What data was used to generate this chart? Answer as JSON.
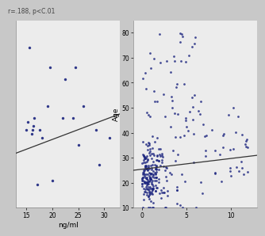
{
  "left_plot": {
    "annotation": "r=.188, p<C.01",
    "xlabel": "ng/ml",
    "xlim": [
      13,
      33
    ],
    "xticks": [
      15,
      20,
      25,
      30
    ],
    "ylim": [
      24,
      72
    ],
    "yticks": [],
    "scatter_x": [
      15.0,
      15.2,
      15.5,
      16.0,
      16.1,
      16.3,
      16.5,
      17.0,
      17.5,
      18.0,
      19.0,
      19.5,
      20.0,
      22.0,
      22.5,
      24.0,
      24.5,
      25.0,
      26.0,
      28.5,
      29.0,
      31.0
    ],
    "scatter_y": [
      44,
      46,
      65,
      43,
      44,
      45,
      47,
      30,
      44,
      42,
      50,
      60,
      31,
      47,
      57,
      47,
      60,
      40,
      50,
      44,
      35,
      42
    ],
    "line_x": [
      13,
      33
    ],
    "line_y": [
      38,
      48
    ],
    "bg_color": "#ececec"
  },
  "right_plot": {
    "ylabel": "Age",
    "xlabel": "",
    "xlim": [
      -1,
      13
    ],
    "xticks": [
      0,
      5,
      10
    ],
    "ylim": [
      10,
      85
    ],
    "yticks": [
      10,
      20,
      30,
      40,
      50,
      60,
      70,
      80
    ],
    "line_x": [
      -1,
      13
    ],
    "line_y": [
      25,
      31
    ],
    "bg_color": "#ececec"
  },
  "dot_color": "#1a237e",
  "line_color": "#333333",
  "fig_bg": "#c8c8c8"
}
